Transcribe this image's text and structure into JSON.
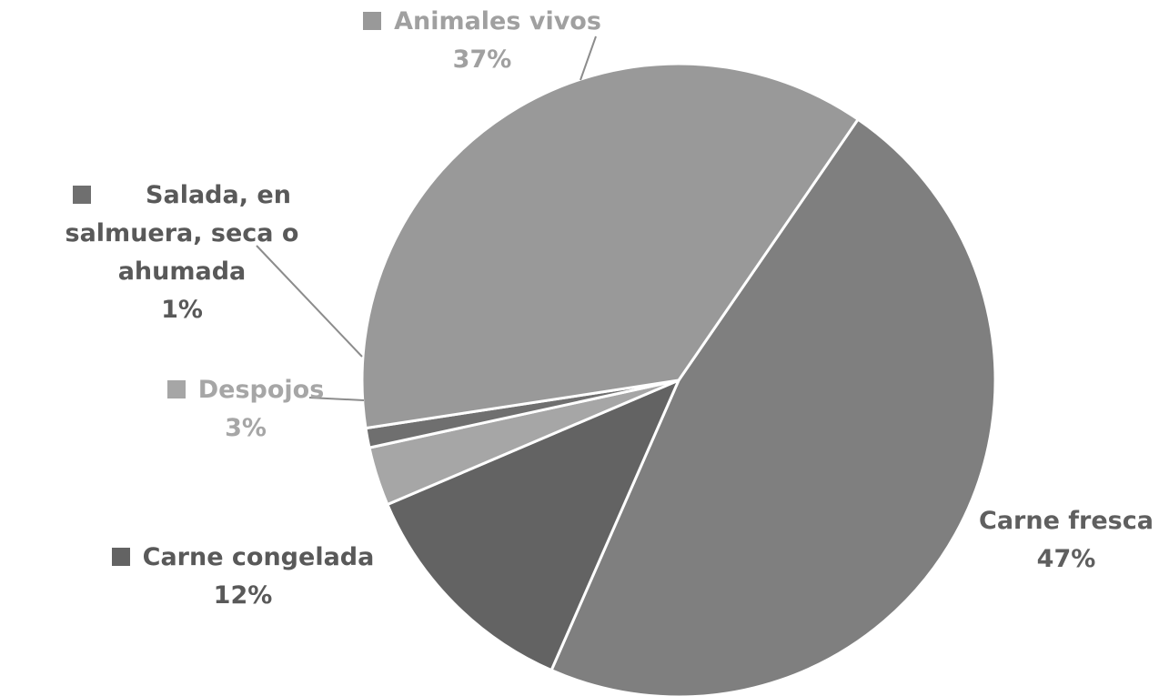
{
  "chart_data": {
    "type": "pie",
    "title": "",
    "legend": "none",
    "slices": [
      {
        "label": "Carne fresca",
        "value": 47,
        "pct": "47%",
        "color": "#7f7f7f",
        "text_color": "#5f5f5f"
      },
      {
        "label": "Carne congelada",
        "value": 12,
        "pct": "12%",
        "color": "#636363",
        "text_color": "#595959"
      },
      {
        "label": "Despojos",
        "value": 3,
        "pct": "3%",
        "color": "#a6a6a6",
        "text_color": "#a6a6a6"
      },
      {
        "label": "Salada, en salmuera, seca o ahumada",
        "value": 1,
        "pct": "1%",
        "color": "#6f6f6f",
        "text_color": "#595959",
        "label_lines": [
          "Salada, en",
          "salmuera, seca o",
          "ahumada"
        ]
      },
      {
        "label": "Animales vivos",
        "value": 37,
        "pct": "37%",
        "color": "#999999",
        "text_color": "#a0a0a0"
      }
    ]
  }
}
